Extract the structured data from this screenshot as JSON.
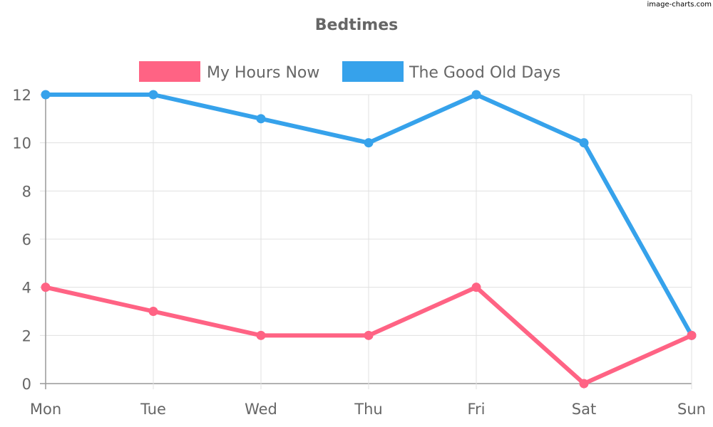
{
  "watermark": "image-charts.com",
  "chart_data": {
    "type": "line",
    "title": "Bedtimes",
    "xlabel": "",
    "ylabel": "",
    "categories": [
      "Mon",
      "Tue",
      "Wed",
      "Thu",
      "Fri",
      "Sat",
      "Sun"
    ],
    "ylim": [
      0,
      12
    ],
    "yticks": [
      0,
      2,
      4,
      6,
      8,
      10,
      12
    ],
    "grid": true,
    "legend_position": "top",
    "series": [
      {
        "name": "My Hours Now",
        "color": "#ff6384",
        "values": [
          4,
          3,
          2,
          2,
          4,
          0,
          2
        ]
      },
      {
        "name": "The Good Old Days",
        "color": "#36a2eb",
        "values": [
          12,
          12,
          11,
          10,
          12,
          10,
          2
        ]
      }
    ]
  }
}
